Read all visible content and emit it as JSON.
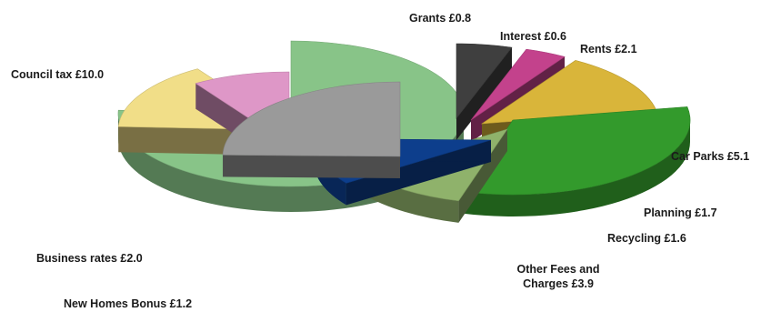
{
  "chart_data": {
    "type": "pie",
    "style": "3d-exploded",
    "units": "£",
    "groups": [
      {
        "name": "",
        "slices": [
          {
            "label": "Council tax £10.0",
            "category": "Council tax",
            "value": 10.0,
            "color": "#88c488"
          },
          {
            "label": "Business  rates £2.0",
            "category": "Business rates",
            "value": 2.0,
            "color": "#f1de88"
          },
          {
            "label": "New Homes Bonus  £1.2",
            "category": "New Homes Bonus",
            "value": 1.2,
            "color": "#de97c7"
          }
        ]
      },
      {
        "name": "",
        "slices": [
          {
            "label": "Grants  £0.8",
            "category": "Grants",
            "value": 0.8,
            "color": "#3f3f3f"
          },
          {
            "label": "Interest  £0.6",
            "category": "Interest",
            "value": 0.6,
            "color": "#c3428c"
          },
          {
            "label": "Rents  £2.1",
            "category": "Rents",
            "value": 2.1,
            "color": "#d9b53a"
          },
          {
            "label": "Car Parks  £5.1",
            "category": "Car Parks",
            "value": 5.1,
            "color": "#339a2c"
          },
          {
            "label": "Planning  £1.7",
            "category": "Planning",
            "value": 1.7,
            "color": "#8fb26b"
          },
          {
            "label": "Recycling  £1.6",
            "category": "Recycling",
            "value": 1.6,
            "color": "#0d3e8c"
          },
          {
            "label": "Other Fees and",
            "label2": "Charges  £3.9",
            "category": "Other Fees and Charges",
            "value": 3.9,
            "color": "#9a9a9a"
          }
        ]
      }
    ]
  }
}
